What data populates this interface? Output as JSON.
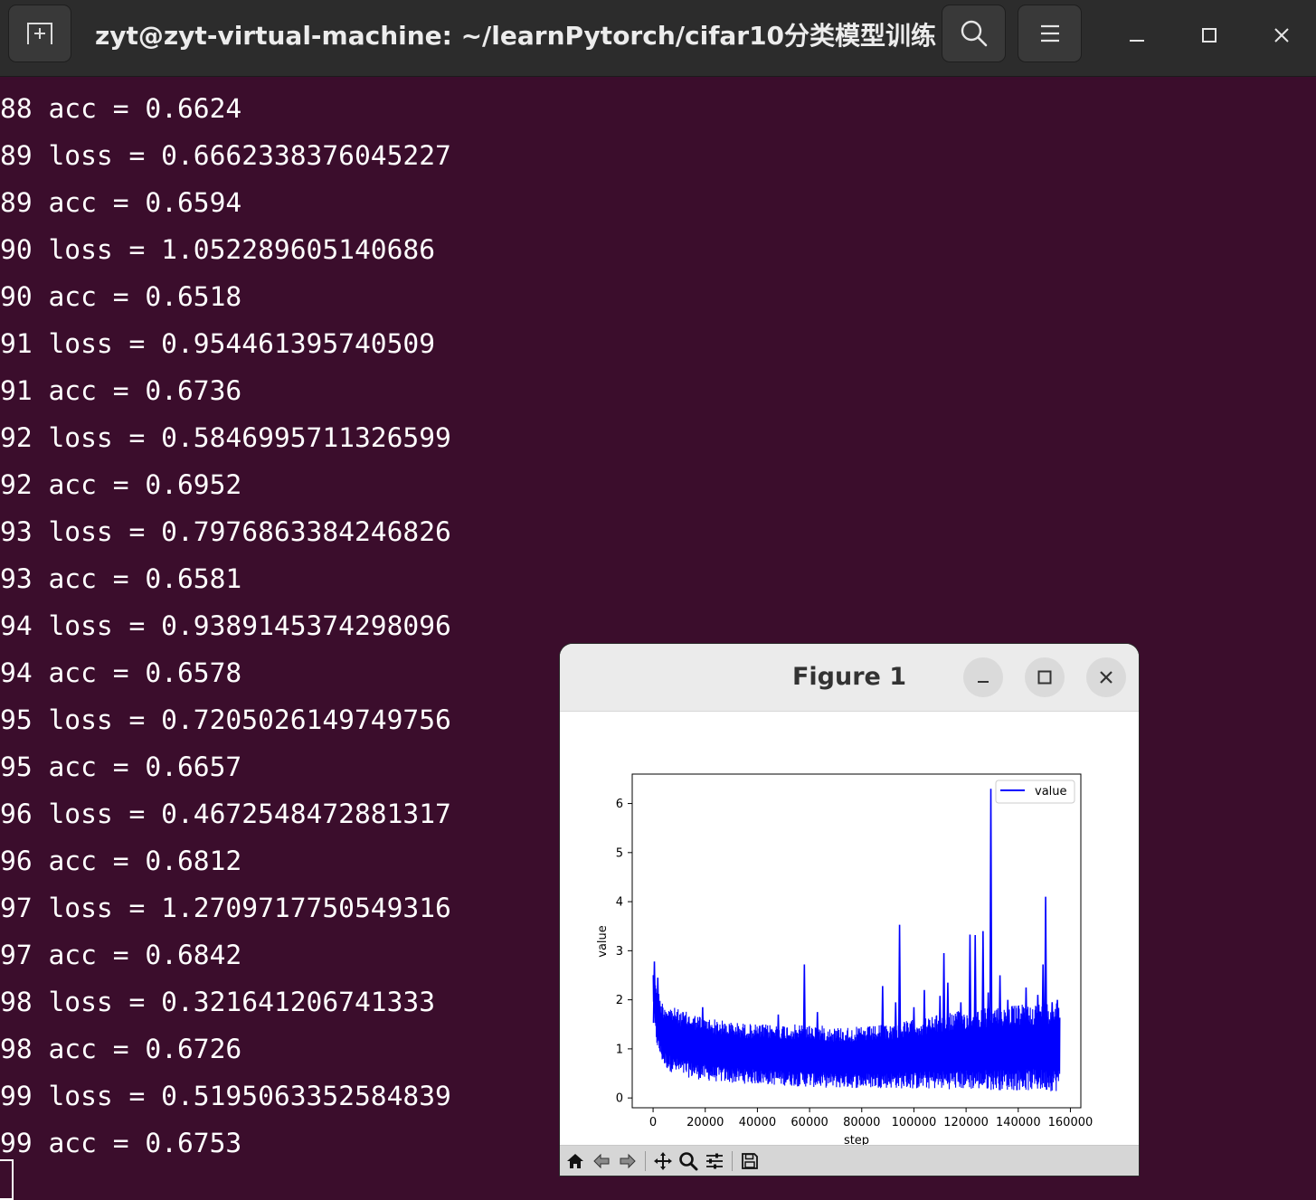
{
  "terminal": {
    "title": "zyt@zyt-virtual-machine: ~/learnPytorch/cifar10分类模型训练",
    "new_tab_icon": "new-tab-icon",
    "search_icon": "search-icon",
    "menu_icon": "hamburger-menu-icon",
    "lines": [
      "88 acc = 0.6624",
      "89 loss = 0.6662338376045227",
      "89 acc = 0.6594",
      "90 loss = 1.052289605140686",
      "90 acc = 0.6518",
      "91 loss = 0.954461395740509",
      "91 acc = 0.6736",
      "92 loss = 0.5846995711326599",
      "92 acc = 0.6952",
      "93 loss = 0.7976863384246826",
      "93 acc = 0.6581",
      "94 loss = 0.9389145374298096",
      "94 acc = 0.6578",
      "95 loss = 0.7205026149749756",
      "95 acc = 0.6657",
      "96 loss = 0.4672548472881317",
      "96 acc = 0.6812",
      "97 loss = 1.2709717750549316",
      "97 acc = 0.6842",
      "98 loss = 0.321641206741333",
      "98 acc = 0.6726",
      "99 loss = 0.5195063352584839",
      "99 acc = 0.6753"
    ]
  },
  "figure": {
    "title": "Figure 1",
    "toolbar": [
      "home-icon",
      "back-icon",
      "forward-icon",
      "pan-icon",
      "zoom-icon",
      "configure-subplots-icon",
      "save-icon"
    ]
  },
  "chart_data": {
    "type": "line",
    "title": "",
    "xlabel": "step",
    "ylabel": "value",
    "xlim": [
      -8000,
      164000
    ],
    "ylim": [
      -0.2,
      6.6
    ],
    "xticks": [
      0,
      20000,
      40000,
      60000,
      80000,
      100000,
      120000,
      140000,
      160000
    ],
    "yticks": [
      0,
      1,
      2,
      3,
      4,
      5,
      6
    ],
    "legend": {
      "position": "top-right"
    },
    "grid": false,
    "series": [
      {
        "name": "value",
        "color": "#0000ff",
        "x_range": [
          0,
          156000
        ],
        "envelope": {
          "x": [
            0,
            1000,
            2000,
            3000,
            4000,
            6000,
            10000,
            20000,
            30000,
            40000,
            50000,
            60000,
            70000,
            80000,
            90000,
            100000,
            110000,
            120000,
            130000,
            140000,
            150000,
            156000
          ],
          "upper": [
            2.6,
            2.5,
            2.2,
            2.0,
            1.95,
            1.9,
            1.8,
            1.65,
            1.55,
            1.5,
            1.5,
            1.5,
            1.45,
            1.45,
            1.5,
            1.6,
            1.7,
            1.8,
            1.85,
            1.9,
            1.95,
            2.0
          ],
          "lower": [
            2.0,
            1.2,
            0.9,
            0.8,
            0.65,
            0.55,
            0.45,
            0.35,
            0.3,
            0.28,
            0.25,
            0.22,
            0.2,
            0.2,
            0.2,
            0.18,
            0.18,
            0.17,
            0.16,
            0.15,
            0.14,
            0.13
          ]
        },
        "spikes": [
          [
            500,
            2.78
          ],
          [
            1800,
            2.45
          ],
          [
            19000,
            1.85
          ],
          [
            48000,
            1.7
          ],
          [
            58000,
            2.72
          ],
          [
            63000,
            1.75
          ],
          [
            88000,
            2.28
          ],
          [
            93000,
            1.95
          ],
          [
            94500,
            3.53
          ],
          [
            100000,
            1.85
          ],
          [
            104000,
            2.2
          ],
          [
            110000,
            2.08
          ],
          [
            111500,
            2.95
          ],
          [
            113000,
            2.35
          ],
          [
            118000,
            1.95
          ],
          [
            121500,
            3.33
          ],
          [
            123500,
            3.32
          ],
          [
            126500,
            3.4
          ],
          [
            128500,
            2.15
          ],
          [
            129500,
            6.3
          ],
          [
            133000,
            2.5
          ],
          [
            136000,
            2.0
          ],
          [
            143000,
            2.25
          ],
          [
            147500,
            2.1
          ],
          [
            149500,
            2.72
          ],
          [
            150500,
            4.1
          ],
          [
            153000,
            1.95
          ],
          [
            155000,
            2.0
          ]
        ]
      }
    ]
  }
}
